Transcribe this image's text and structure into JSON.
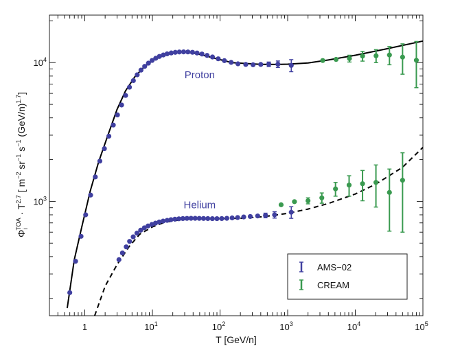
{
  "chart_data": {
    "type": "scatter",
    "title": "",
    "xlabel": "T [GeV/n]",
    "ylabel": "Φ_i^TOA · T^2.7 [ m^−2 sr^−1 s^−1 (GeV/n)^1.7]",
    "xscale": "log",
    "yscale": "log",
    "xlim": [
      0.3,
      100000
    ],
    "ylim": [
      150,
      22000
    ],
    "x_ticks": [
      {
        "value": 1,
        "label": "1"
      },
      {
        "value": 10,
        "label": "10",
        "sup": "1"
      },
      {
        "value": 100,
        "label": "10",
        "sup": "2"
      },
      {
        "value": 1000,
        "label": "10",
        "sup": "3"
      },
      {
        "value": 10000,
        "label": "10",
        "sup": "4"
      },
      {
        "value": 100000,
        "label": "10",
        "sup": "5"
      }
    ],
    "y_ticks": [
      {
        "value": 1000,
        "label": "10",
        "sup": "3"
      },
      {
        "value": 10000,
        "label": "10",
        "sup": "4"
      }
    ],
    "annotations": [
      {
        "text": "Proton",
        "x": 50,
        "y": 7700,
        "color": "#4040a0"
      },
      {
        "text": "Helium",
        "x": 50,
        "y": 890,
        "color": "#4040a0"
      }
    ],
    "legend": {
      "position": "bottom-right",
      "entries": [
        {
          "label": "AMS−02",
          "color": "#4040a0"
        },
        {
          "label": "CREAM",
          "color": "#3a9a50"
        }
      ]
    },
    "lines": [
      {
        "name": "Proton model",
        "style": "solid",
        "color": "#000000",
        "x": [
          0.55,
          0.7,
          0.9,
          1.2,
          1.6,
          2.2,
          3,
          4,
          5.5,
          7.5,
          10,
          14,
          20,
          30,
          45,
          70,
          100,
          150,
          250,
          400,
          700,
          1000,
          2000,
          4000,
          10000,
          30000,
          100000
        ],
        "y": [
          170,
          380,
          650,
          1180,
          1920,
          3000,
          4600,
          6250,
          7900,
          9300,
          10300,
          11150,
          11750,
          11950,
          11600,
          11000,
          10500,
          10000,
          9850,
          9720,
          9700,
          9750,
          9950,
          10450,
          11300,
          12600,
          14300
        ]
      },
      {
        "name": "Helium model",
        "style": "dashed",
        "color": "#000000",
        "x": [
          1.4,
          2,
          3,
          4.5,
          6.5,
          10,
          15,
          25,
          40,
          70,
          120,
          200,
          350,
          600,
          1000,
          2000,
          4000,
          10000,
          20000,
          50000,
          100000
        ],
        "y": [
          150,
          245,
          350,
          470,
          580,
          655,
          705,
          735,
          748,
          752,
          752,
          756,
          768,
          790,
          820,
          880,
          965,
          1130,
          1330,
          1760,
          2450
        ]
      }
    ],
    "series": [
      {
        "name": "AMS−02 Proton",
        "color": "#4040a0",
        "x": [
          0.6,
          0.73,
          0.88,
          1.03,
          1.22,
          1.43,
          1.67,
          1.95,
          2.27,
          2.64,
          3.04,
          3.5,
          4.01,
          4.58,
          5.23,
          5.96,
          6.78,
          7.69,
          8.72,
          9.89,
          11.2,
          12.7,
          14.5,
          16.5,
          19.0,
          21.8,
          25.0,
          28.9,
          33.5,
          39.1,
          45.7,
          54.0,
          64.3,
          77.3,
          94.0,
          116,
          146,
          184,
          240,
          308,
          400,
          526,
          718,
          1130
        ],
        "y": [
          220,
          370,
          560,
          800,
          1110,
          1500,
          1950,
          2400,
          2950,
          3550,
          4200,
          4950,
          5800,
          6650,
          7420,
          8170,
          8830,
          9400,
          9910,
          10370,
          10750,
          11080,
          11350,
          11570,
          11740,
          11860,
          11930,
          11950,
          11940,
          11870,
          11730,
          11530,
          11270,
          10980,
          10650,
          10330,
          10040,
          9800,
          9700,
          9650,
          9700,
          9730,
          9750,
          9550
        ],
        "yerr": [
          4,
          6,
          8,
          10,
          12,
          16,
          18,
          22,
          28,
          32,
          38,
          44,
          52,
          60,
          66,
          72,
          80,
          85,
          90,
          95,
          98,
          100,
          104,
          106,
          108,
          110,
          112,
          114,
          116,
          120,
          124,
          130,
          136,
          144,
          152,
          160,
          170,
          180,
          200,
          230,
          280,
          360,
          520,
          950
        ]
      },
      {
        "name": "CREAM Proton",
        "color": "#3a9a50",
        "x": [
          3300,
          5200,
          8200,
          12800,
          20300,
          32000,
          50000,
          80000
        ],
        "y": [
          10350,
          10550,
          10700,
          11150,
          11200,
          11350,
          10950,
          10400
        ],
        "yerr": [
          200,
          350,
          600,
          900,
          1200,
          1700,
          2700,
          3800
        ]
      },
      {
        "name": "AMS−02 Helium",
        "color": "#4040a0",
        "x": [
          3.2,
          3.6,
          4.1,
          4.6,
          5.2,
          5.9,
          6.7,
          7.6,
          8.6,
          9.8,
          11.1,
          12.6,
          14.4,
          16.5,
          18.8,
          21.5,
          24.6,
          28.2,
          32.4,
          37.2,
          42.8,
          49.3,
          57.0,
          66.0,
          77.0,
          90.0,
          106,
          126,
          151,
          182,
          224,
          280,
          360,
          470,
          640,
          1130
        ],
        "y": [
          380,
          425,
          470,
          515,
          555,
          590,
          620,
          645,
          665,
          682,
          697,
          710,
          721,
          730,
          738,
          744,
          749,
          752,
          754,
          755,
          755,
          754,
          753,
          752,
          751,
          751,
          752,
          755,
          760,
          765,
          772,
          778,
          785,
          792,
          800,
          835
        ],
        "yerr": [
          4,
          5,
          5,
          6,
          6,
          7,
          7,
          7,
          8,
          8,
          8,
          9,
          9,
          9,
          9,
          10,
          10,
          10,
          10,
          10,
          10,
          11,
          11,
          11,
          12,
          12,
          13,
          14,
          15,
          16,
          18,
          20,
          24,
          30,
          42,
          80
        ]
      },
      {
        "name": "CREAM Helium",
        "color": "#3a9a50",
        "x": [
          800,
          1260,
          2000,
          3200,
          5100,
          8100,
          12800,
          20200,
          32000,
          50000
        ],
        "y": [
          945,
          995,
          1010,
          1060,
          1230,
          1310,
          1340,
          1370,
          1160,
          1420
        ],
        "yerr": [
          20,
          30,
          50,
          90,
          140,
          220,
          330,
          460,
          550,
          820
        ]
      }
    ]
  }
}
